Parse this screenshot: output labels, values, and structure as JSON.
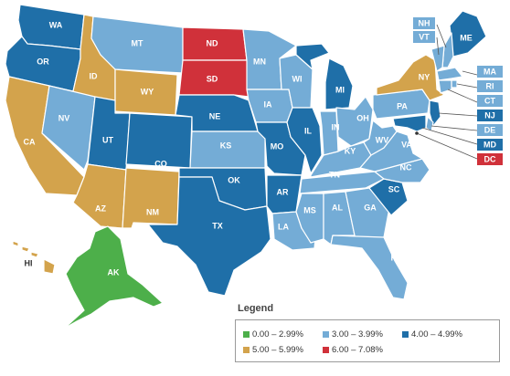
{
  "colors": {
    "green": "#4daf4a",
    "light_blue": "#74acd6",
    "dark_blue": "#1f6fa8",
    "tan": "#d3a34c",
    "red": "#d0313a"
  },
  "legend": {
    "title": "Legend",
    "items": [
      {
        "label": "0.00 – 2.99%",
        "color": "#4daf4a"
      },
      {
        "label": "3.00 – 3.99%",
        "color": "#74acd6"
      },
      {
        "label": "4.00 – 4.99%",
        "color": "#1f6fa8"
      },
      {
        "label": "5.00 – 5.99%",
        "color": "#d3a34c"
      },
      {
        "label": "6.00 – 7.08%",
        "color": "#d0313a"
      }
    ]
  },
  "states": {
    "WA": {
      "label": "WA",
      "bin": "4.00 – 4.99%"
    },
    "OR": {
      "label": "OR",
      "bin": "4.00 – 4.99%"
    },
    "CA": {
      "label": "CA",
      "bin": "5.00 – 5.99%"
    },
    "ID": {
      "label": "ID",
      "bin": "5.00 – 5.99%"
    },
    "NV": {
      "label": "NV",
      "bin": "3.00 – 3.99%"
    },
    "MT": {
      "label": "MT",
      "bin": "3.00 – 3.99%"
    },
    "WY": {
      "label": "WY",
      "bin": "5.00 – 5.99%"
    },
    "UT": {
      "label": "UT",
      "bin": "4.00 – 4.99%"
    },
    "AZ": {
      "label": "AZ",
      "bin": "5.00 – 5.99%"
    },
    "CO": {
      "label": "CO",
      "bin": "4.00 – 4.99%"
    },
    "NM": {
      "label": "NM",
      "bin": "5.00 – 5.99%"
    },
    "ND": {
      "label": "ND",
      "bin": "6.00 – 7.08%"
    },
    "SD": {
      "label": "SD",
      "bin": "6.00 – 7.08%"
    },
    "NE": {
      "label": "NE",
      "bin": "4.00 – 4.99%"
    },
    "KS": {
      "label": "KS",
      "bin": "3.00 – 3.99%"
    },
    "OK": {
      "label": "OK",
      "bin": "4.00 – 4.99%"
    },
    "TX": {
      "label": "TX",
      "bin": "4.00 – 4.99%"
    },
    "MN": {
      "label": "MN",
      "bin": "3.00 – 3.99%"
    },
    "IA": {
      "label": "IA",
      "bin": "3.00 – 3.99%"
    },
    "MO": {
      "label": "MO",
      "bin": "4.00 – 4.99%"
    },
    "AR": {
      "label": "AR",
      "bin": "4.00 – 4.99%"
    },
    "LA": {
      "label": "LA",
      "bin": "3.00 – 3.99%"
    },
    "WI": {
      "label": "WI",
      "bin": "3.00 – 3.99%"
    },
    "IL": {
      "label": "IL",
      "bin": "4.00 – 4.99%"
    },
    "MI": {
      "label": "MI",
      "bin": "4.00 – 4.99%"
    },
    "IN": {
      "label": "IN",
      "bin": "3.00 – 3.99%"
    },
    "OH": {
      "label": "OH",
      "bin": "3.00 – 3.99%"
    },
    "KY": {
      "label": "KY",
      "bin": "3.00 – 3.99%"
    },
    "TN": {
      "label": "TN",
      "bin": "3.00 – 3.99%"
    },
    "MS": {
      "label": "MS",
      "bin": "3.00 – 3.99%"
    },
    "AL": {
      "label": "AL",
      "bin": "3.00 – 3.99%"
    },
    "GA": {
      "label": "GA",
      "bin": "3.00 – 3.99%"
    },
    "FL": {
      "label": "FL",
      "bin": "3.00 – 3.99%"
    },
    "SC": {
      "label": "SC",
      "bin": "4.00 – 4.99%"
    },
    "NC": {
      "label": "NC",
      "bin": "3.00 – 3.99%"
    },
    "VA": {
      "label": "VA",
      "bin": "3.00 – 3.99%"
    },
    "WV": {
      "label": "WV",
      "bin": "3.00 – 3.99%"
    },
    "PA": {
      "label": "PA",
      "bin": "3.00 – 3.99%"
    },
    "NY": {
      "label": "NY",
      "bin": "5.00 – 5.99%"
    },
    "ME": {
      "label": "ME",
      "bin": "4.00 – 4.99%"
    },
    "NH": {
      "label": "NH",
      "bin": "3.00 – 3.99%"
    },
    "VT": {
      "label": "VT",
      "bin": "3.00 – 3.99%"
    },
    "MA": {
      "label": "MA",
      "bin": "3.00 – 3.99%"
    },
    "RI": {
      "label": "RI",
      "bin": "3.00 – 3.99%"
    },
    "CT": {
      "label": "CT",
      "bin": "3.00 – 3.99%"
    },
    "NJ": {
      "label": "NJ",
      "bin": "4.00 – 4.99%"
    },
    "DE": {
      "label": "DE",
      "bin": "3.00 – 3.99%"
    },
    "MD": {
      "label": "MD",
      "bin": "4.00 – 4.99%"
    },
    "DC": {
      "label": "DC",
      "bin": "6.00 – 7.08%"
    },
    "AK": {
      "label": "AK",
      "bin": "0.00 – 2.99%"
    },
    "HI": {
      "label": "HI",
      "bin": "5.00 – 5.99%"
    }
  }
}
